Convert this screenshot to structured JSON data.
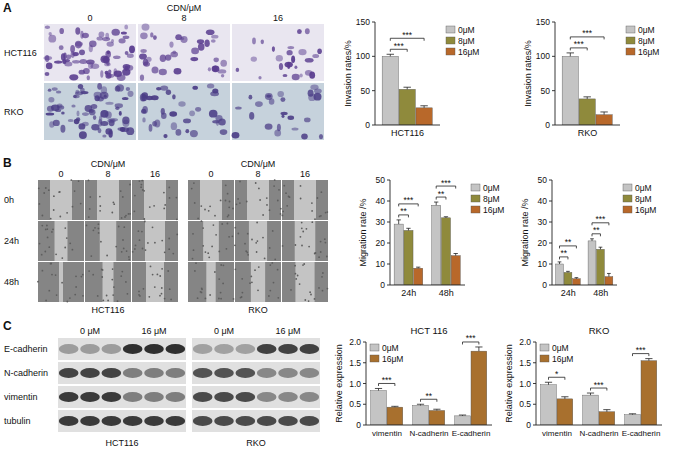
{
  "panel_labels": [
    "A",
    "B",
    "C"
  ],
  "images": {
    "invasion": {
      "header": "CDN/μM",
      "columns": [
        "0",
        "8",
        "16"
      ],
      "rows": [
        "HCT116",
        "RKO"
      ]
    },
    "migration": {
      "header": "CDN/μM",
      "columns": [
        "0",
        "8",
        "16"
      ],
      "rows": [
        "0h",
        "24h",
        "48h"
      ],
      "groups": [
        "HCT116",
        "RKO"
      ]
    },
    "blot": {
      "doses": [
        "0 μM",
        "16 μM"
      ],
      "rows": [
        "E-cadherin",
        "N-cadherin",
        "vimentin",
        "tubulin"
      ],
      "groups": [
        "HCT116",
        "RKO"
      ]
    }
  },
  "chart_data": [
    {
      "type": "bar",
      "categories": [
        "HCT116"
      ],
      "ylabel": "Invasion rates/%",
      "ylim": [
        0,
        150
      ],
      "yticks": [
        0,
        50,
        100,
        150
      ],
      "grid": false,
      "legend": "right",
      "series": [
        {
          "name": "0μM",
          "color": "#c4c4c4",
          "values": [
            100
          ],
          "errors": [
            3
          ]
        },
        {
          "name": "8μM",
          "color": "#8f8a3c",
          "values": [
            52
          ],
          "errors": [
            3
          ]
        },
        {
          "name": "16μM",
          "color": "#b8682a",
          "values": [
            25
          ],
          "errors": [
            3
          ]
        }
      ],
      "annotations": [
        {
          "text": "***",
          "category": 0,
          "series": [
            0,
            1
          ]
        },
        {
          "text": "***",
          "category": 0,
          "series": [
            0,
            2
          ]
        }
      ]
    },
    {
      "type": "bar",
      "categories": [
        "RKO"
      ],
      "ylabel": "Invasion rates/%",
      "ylim": [
        0,
        150
      ],
      "yticks": [
        0,
        50,
        100,
        150
      ],
      "grid": false,
      "legend": "right",
      "series": [
        {
          "name": "0μM",
          "color": "#c4c4c4",
          "values": [
            100
          ],
          "errors": [
            5
          ]
        },
        {
          "name": "8μM",
          "color": "#8f8a3c",
          "values": [
            38
          ],
          "errors": [
            3
          ]
        },
        {
          "name": "16μM",
          "color": "#b8682a",
          "values": [
            15
          ],
          "errors": [
            4
          ]
        }
      ],
      "annotations": [
        {
          "text": "***",
          "category": 0,
          "series": [
            0,
            1
          ]
        },
        {
          "text": "***",
          "category": 0,
          "series": [
            0,
            2
          ]
        }
      ]
    },
    {
      "type": "bar",
      "categories": [
        "24h",
        "48h"
      ],
      "ylabel": "Migration rate /%",
      "ylim": [
        0,
        50
      ],
      "yticks": [
        0,
        10,
        20,
        30,
        40,
        50
      ],
      "grid": false,
      "legend": "right",
      "series": [
        {
          "name": "0μM",
          "color": "#c4c4c4",
          "values": [
            29,
            38
          ],
          "errors": [
            2,
            1.5
          ]
        },
        {
          "name": "8μM",
          "color": "#8f8a3c",
          "values": [
            26,
            32
          ],
          "errors": [
            1,
            0.5
          ]
        },
        {
          "name": "16μM",
          "color": "#b8682a",
          "values": [
            8,
            14
          ],
          "errors": [
            0.5,
            1
          ]
        }
      ],
      "annotations": [
        {
          "text": "**",
          "category": 0,
          "series": [
            0,
            1
          ]
        },
        {
          "text": "***",
          "category": 0,
          "series": [
            0,
            2
          ]
        },
        {
          "text": "**",
          "category": 1,
          "series": [
            0,
            1
          ]
        },
        {
          "text": "***",
          "category": 1,
          "series": [
            0,
            2
          ]
        }
      ]
    },
    {
      "type": "bar",
      "categories": [
        "24h",
        "48h"
      ],
      "ylabel": "Migration rate /%",
      "ylim": [
        0,
        50
      ],
      "yticks": [
        0,
        10,
        20,
        30,
        40,
        50
      ],
      "grid": false,
      "legend": "right",
      "series": [
        {
          "name": "0μM",
          "color": "#c4c4c4",
          "values": [
            10,
            21
          ],
          "errors": [
            1,
            1
          ]
        },
        {
          "name": "8μM",
          "color": "#8f8a3c",
          "values": [
            6,
            17
          ],
          "errors": [
            0.5,
            1
          ]
        },
        {
          "name": "16μM",
          "color": "#b8682a",
          "values": [
            3,
            4
          ],
          "errors": [
            0.5,
            1.5
          ]
        }
      ],
      "annotations": [
        {
          "text": "**",
          "category": 0,
          "series": [
            0,
            1
          ]
        },
        {
          "text": "**",
          "category": 0,
          "series": [
            0,
            2
          ]
        },
        {
          "text": "**",
          "category": 1,
          "series": [
            0,
            1
          ]
        },
        {
          "text": "***",
          "category": 1,
          "series": [
            0,
            2
          ]
        }
      ]
    },
    {
      "type": "bar",
      "title": "HCT 116",
      "categories": [
        "vimentin",
        "N-cadherin",
        "E-cadherin"
      ],
      "ylabel": "Relative expression",
      "ylim": [
        0,
        2
      ],
      "yticks": [
        0,
        0.5,
        {
          "value": 1,
          "label": "1.0"
        },
        1.5,
        {
          "value": 2,
          "label": "2.0"
        }
      ],
      "grid": false,
      "legend": "upper left",
      "series": [
        {
          "name": "0μM",
          "color": "#c4c4c4",
          "values": [
            0.83,
            0.47,
            0.22
          ],
          "errors": [
            0.05,
            0.03,
            0.02
          ]
        },
        {
          "name": "16μM",
          "color": "#a8702e",
          "values": [
            0.43,
            0.35,
            1.78
          ],
          "errors": [
            0.02,
            0.03,
            0.1
          ]
        }
      ],
      "annotations": [
        {
          "text": "***",
          "category": 0,
          "series": [
            0,
            1
          ]
        },
        {
          "text": "**",
          "category": 1,
          "series": [
            0,
            1
          ]
        },
        {
          "text": "***",
          "category": 2,
          "series": [
            0,
            1
          ]
        }
      ]
    },
    {
      "type": "bar",
      "title": "RKO",
      "categories": [
        "vimentin",
        "N-cadherin",
        "E-cadherin"
      ],
      "ylabel": "Relative expression",
      "ylim": [
        0,
        2
      ],
      "yticks": [
        0,
        0.5,
        {
          "value": 1,
          "label": "1.0"
        },
        1.5,
        {
          "value": 2,
          "label": "2.0"
        }
      ],
      "grid": false,
      "legend": "upper left",
      "series": [
        {
          "name": "0μM",
          "color": "#c4c4c4",
          "values": [
            0.97,
            0.72,
            0.25
          ],
          "errors": [
            0.06,
            0.05,
            0.02
          ]
        },
        {
          "name": "16μM",
          "color": "#a8702e",
          "values": [
            0.63,
            0.32,
            1.55
          ],
          "errors": [
            0.05,
            0.05,
            0.05
          ]
        }
      ],
      "annotations": [
        {
          "text": "*",
          "category": 0,
          "series": [
            0,
            1
          ]
        },
        {
          "text": "***",
          "category": 1,
          "series": [
            0,
            1
          ]
        },
        {
          "text": "***",
          "category": 2,
          "series": [
            0,
            1
          ]
        }
      ]
    }
  ]
}
